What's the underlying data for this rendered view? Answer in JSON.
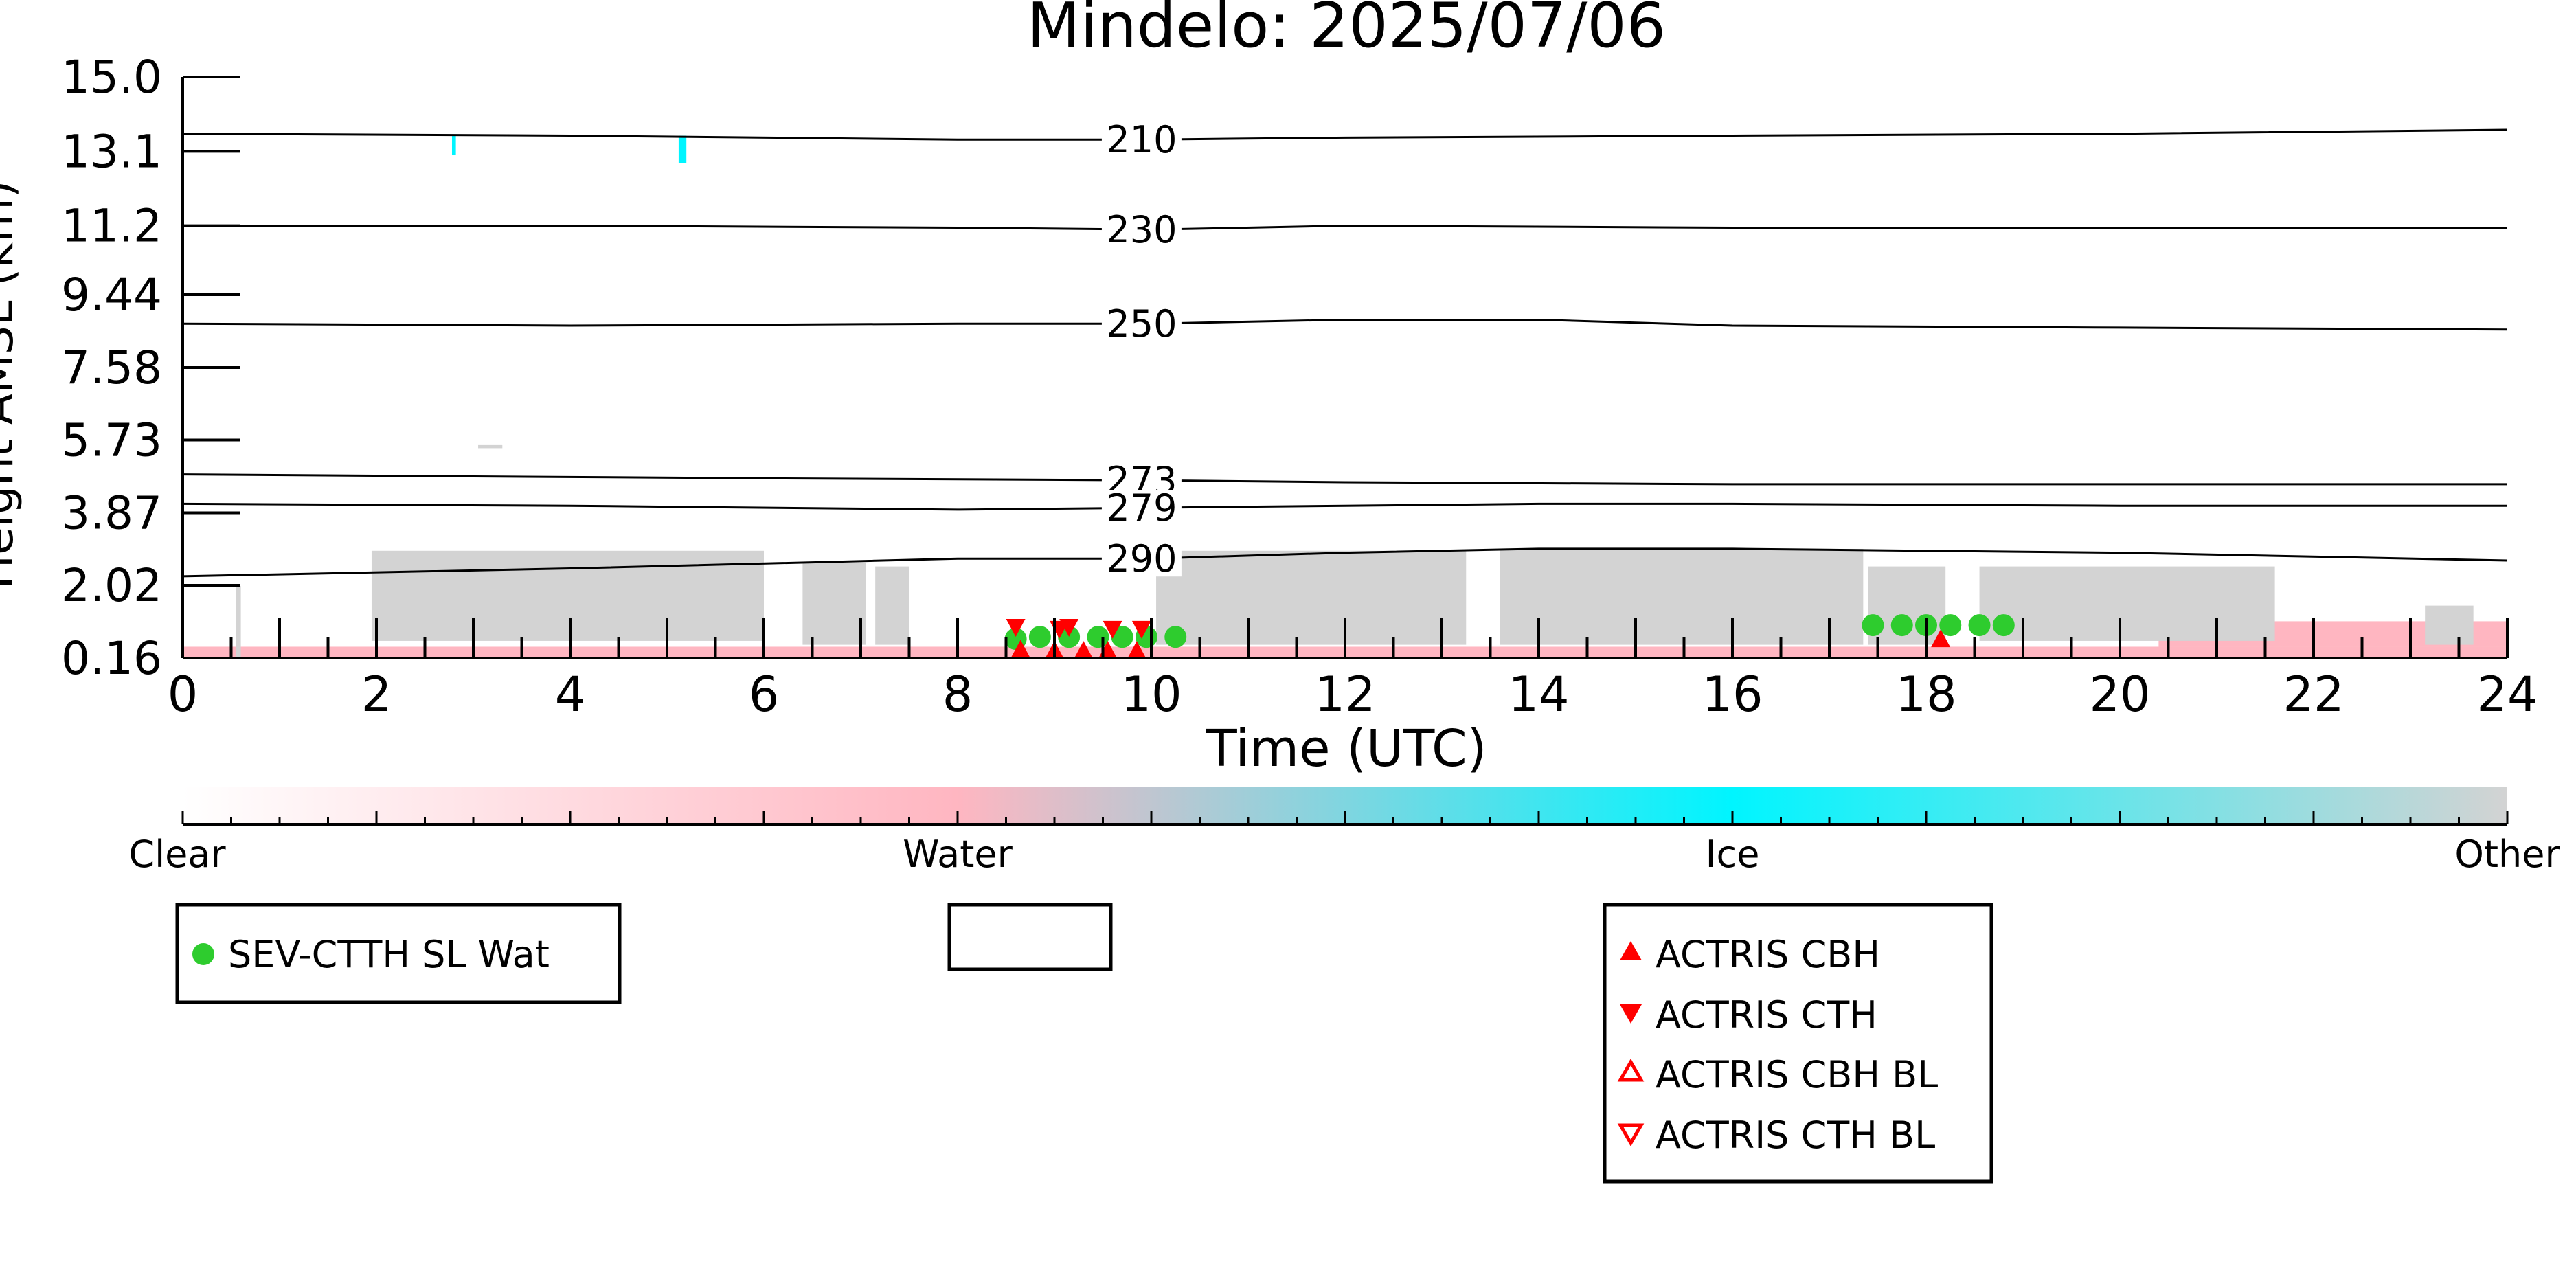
{
  "chart_data": {
    "type": "heatmap",
    "title": "Mindelo: 2025/07/06",
    "xlabel": "Time (UTC)",
    "ylabel": "Height AMSL (km)",
    "xlim": [
      0,
      24
    ],
    "x_ticks": [
      0,
      2,
      4,
      6,
      8,
      10,
      12,
      14,
      16,
      18,
      20,
      22,
      24
    ],
    "ylim": [
      0.16,
      15.0
    ],
    "y_ticks": [
      "0.16",
      "2.02",
      "3.87",
      "5.73",
      "7.58",
      "9.44",
      "11.2",
      "13.1",
      "15.0"
    ],
    "colors": {
      "clear": "#ffffff",
      "water": "#ffb6c1",
      "ice": "#00f5ff",
      "other": "#d3d3d3",
      "marker_green": "#2ecc2e",
      "marker_red": "#ff0000"
    },
    "temperature_contours": [
      {
        "label": "210",
        "x": [
          0,
          4,
          8,
          10,
          12,
          16,
          20,
          24
        ],
        "y": [
          13.55,
          13.5,
          13.4,
          13.4,
          13.45,
          13.5,
          13.55,
          13.65
        ]
      },
      {
        "label": "230",
        "x": [
          0,
          4,
          8,
          10,
          12,
          16,
          20,
          24
        ],
        "y": [
          11.2,
          11.2,
          11.15,
          11.1,
          11.2,
          11.15,
          11.15,
          11.15
        ]
      },
      {
        "label": "250",
        "x": [
          0,
          4,
          8,
          10,
          12,
          14,
          16,
          20,
          24
        ],
        "y": [
          8.7,
          8.65,
          8.7,
          8.7,
          8.8,
          8.8,
          8.65,
          8.6,
          8.55
        ]
      },
      {
        "label": "273",
        "x": [
          0,
          6,
          10,
          12,
          16,
          20,
          24
        ],
        "y": [
          4.85,
          4.75,
          4.7,
          4.65,
          4.6,
          4.6,
          4.6
        ]
      },
      {
        "label": "279",
        "x": [
          0,
          4,
          8,
          10,
          12,
          14,
          16,
          20,
          24
        ],
        "y": [
          4.1,
          4.05,
          3.95,
          4.0,
          4.05,
          4.1,
          4.1,
          4.05,
          4.05
        ]
      },
      {
        "label": "290",
        "x": [
          0,
          4,
          8,
          10,
          12,
          14,
          16,
          18,
          20,
          24
        ],
        "y": [
          2.25,
          2.45,
          2.7,
          2.7,
          2.85,
          2.95,
          2.95,
          2.9,
          2.85,
          2.65
        ]
      }
    ],
    "cloud_regions": [
      {
        "phase": "water",
        "x0": 0.0,
        "x1": 24.0,
        "y0": 0.16,
        "y1": 0.45
      },
      {
        "phase": "water",
        "x0": 20.4,
        "x1": 24.0,
        "y0": 0.45,
        "y1": 1.1
      },
      {
        "phase": "other",
        "x0": 0.55,
        "x1": 0.6,
        "y0": 0.16,
        "y1": 2.0
      },
      {
        "phase": "other",
        "x0": 1.95,
        "x1": 6.0,
        "y0": 0.6,
        "y1": 2.9
      },
      {
        "phase": "other",
        "x0": 6.4,
        "x1": 7.05,
        "y0": 0.5,
        "y1": 2.6
      },
      {
        "phase": "other",
        "x0": 7.15,
        "x1": 7.5,
        "y0": 0.5,
        "y1": 2.5
      },
      {
        "phase": "other",
        "x0": 10.05,
        "x1": 13.25,
        "y0": 0.5,
        "y1": 2.9
      },
      {
        "phase": "other",
        "x0": 13.6,
        "x1": 17.35,
        "y0": 0.5,
        "y1": 2.95
      },
      {
        "phase": "other",
        "x0": 17.4,
        "x1": 18.2,
        "y0": 0.5,
        "y1": 2.5
      },
      {
        "phase": "other",
        "x0": 18.55,
        "x1": 21.6,
        "y0": 0.6,
        "y1": 2.5
      },
      {
        "phase": "other",
        "x0": 23.15,
        "x1": 23.65,
        "y0": 0.5,
        "y1": 1.5
      },
      {
        "phase": "ice",
        "x0": 2.78,
        "x1": 2.82,
        "y0": 13.0,
        "y1": 13.5
      },
      {
        "phase": "ice",
        "x0": 5.12,
        "x1": 5.2,
        "y0": 12.8,
        "y1": 13.5
      },
      {
        "phase": "other",
        "x0": 3.05,
        "x1": 3.3,
        "y0": 5.52,
        "y1": 5.6
      }
    ],
    "series": [
      {
        "name": "SEV-CTTH SL Wat",
        "marker": "circle",
        "x": [
          8.6,
          8.85,
          9.15,
          9.45,
          9.7,
          9.95,
          10.25,
          17.45,
          17.75,
          18.0,
          18.25,
          18.55,
          18.8
        ],
        "y": [
          0.65,
          0.7,
          0.7,
          0.7,
          0.7,
          0.7,
          0.7,
          1.0,
          1.0,
          1.0,
          1.0,
          1.0,
          1.0
        ]
      },
      {
        "name": "ACTRIS CBH",
        "marker": "triangle-up",
        "x": [
          8.65,
          9.0,
          9.3,
          9.55,
          9.85,
          18.15
        ],
        "y": [
          0.38,
          0.35,
          0.35,
          0.35,
          0.35,
          0.65
        ]
      },
      {
        "name": "ACTRIS CTH",
        "marker": "triangle-down",
        "x": [
          8.6,
          9.05,
          9.15,
          9.6,
          9.9
        ],
        "y": [
          0.95,
          0.9,
          0.95,
          0.9,
          0.9
        ]
      },
      {
        "name": "ACTRIS CBH BL",
        "marker": "triangle-up-open",
        "x": [],
        "y": []
      },
      {
        "name": "ACTRIS CTH BL",
        "marker": "triangle-down-open",
        "x": [],
        "y": []
      }
    ],
    "colorbar": {
      "labels": [
        "Clear",
        "Water",
        "Ice",
        "Other"
      ]
    },
    "legends": [
      {
        "entries": [
          "SEV-CTTH SL Wat"
        ]
      },
      {
        "entries": []
      },
      {
        "entries": [
          "ACTRIS CBH",
          "ACTRIS CTH",
          "ACTRIS CBH BL",
          "ACTRIS CTH BL"
        ]
      }
    ]
  }
}
